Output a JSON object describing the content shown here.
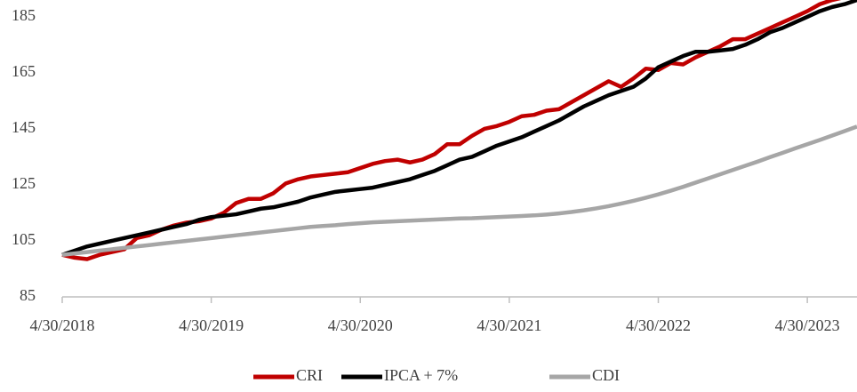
{
  "chart_data": {
    "type": "line",
    "categories": [
      "4/30/2018",
      null,
      null,
      null,
      null,
      null,
      null,
      null,
      null,
      null,
      null,
      null,
      "4/30/2019",
      null,
      null,
      null,
      null,
      null,
      null,
      null,
      null,
      null,
      null,
      null,
      "4/30/2020",
      null,
      null,
      null,
      null,
      null,
      null,
      null,
      null,
      null,
      null,
      null,
      "4/30/2021",
      null,
      null,
      null,
      null,
      null,
      null,
      null,
      null,
      null,
      null,
      null,
      "4/30/2022",
      null,
      null,
      null,
      null,
      null,
      null,
      null,
      null,
      null,
      null,
      null,
      "4/30/2023",
      null,
      null,
      null,
      null
    ],
    "series": [
      {
        "name": "CRI",
        "color": "#c00000",
        "values": [
          100,
          99,
          98.5,
          100,
          101,
          102,
          106,
          107,
          109,
          110.5,
          111.5,
          112,
          113,
          115,
          118.5,
          120,
          120,
          122,
          125.5,
          127,
          128,
          128.5,
          129,
          129.5,
          131,
          132.5,
          133.5,
          134,
          133,
          134,
          136,
          139.5,
          139.5,
          142.5,
          145,
          146,
          147.5,
          149.5,
          150,
          151.5,
          152,
          154.5,
          157,
          159.5,
          162,
          160,
          163,
          166.5,
          166,
          168.5,
          168,
          170.5,
          172.5,
          174.5,
          177,
          177,
          179,
          181,
          183,
          185,
          187,
          189.5,
          191,
          192,
          193
        ]
      },
      {
        "name": "IPCA + 7%",
        "color": "#000000",
        "values": [
          100,
          101.5,
          103,
          104,
          105,
          106,
          107,
          108,
          109,
          110,
          111,
          112.5,
          113.5,
          114,
          114.5,
          115.5,
          116.5,
          117,
          118,
          119,
          120.5,
          121.5,
          122.5,
          123,
          123.5,
          124,
          125,
          126,
          127,
          128.5,
          130,
          132,
          134,
          135,
          137,
          139,
          140.5,
          142,
          144,
          146,
          148,
          150.5,
          153,
          155,
          157,
          158.5,
          160,
          163,
          167,
          169,
          171,
          172.5,
          172.5,
          173,
          173.5,
          175,
          177,
          179.5,
          181,
          183,
          185,
          187,
          188.5,
          189.5,
          191
        ]
      },
      {
        "name": "CDI",
        "color": "#a6a6a6",
        "values": [
          100,
          100.5,
          101,
          101.5,
          102,
          102.5,
          103,
          103.5,
          104,
          104.5,
          105,
          105.5,
          106,
          106.5,
          107,
          107.5,
          108,
          108.5,
          109,
          109.5,
          110,
          110.3,
          110.6,
          111,
          111.3,
          111.6,
          111.8,
          112,
          112.2,
          112.4,
          112.6,
          112.8,
          113,
          113.1,
          113.3,
          113.5,
          113.7,
          113.9,
          114.1,
          114.4,
          114.8,
          115.3,
          115.9,
          116.6,
          117.4,
          118.3,
          119.3,
          120.4,
          121.6,
          122.9,
          124.3,
          125.8,
          127.3,
          128.8,
          130.3,
          131.8,
          133.3,
          134.9,
          136.4,
          138,
          139.5,
          141,
          142.6,
          144.2,
          145.8
        ]
      }
    ],
    "ylim": [
      85,
      191
    ],
    "yticks": [
      85,
      105,
      125,
      145,
      165,
      185
    ],
    "grid": false,
    "legend": "bottom"
  }
}
